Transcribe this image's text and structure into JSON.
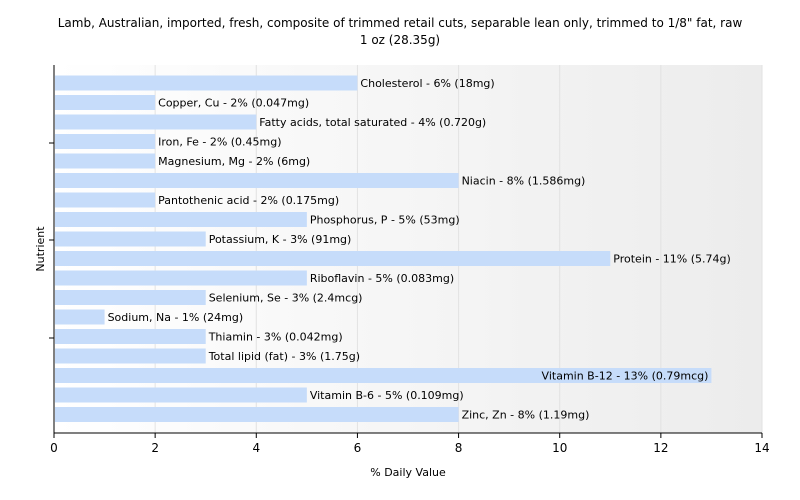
{
  "chart_data": {
    "type": "bar",
    "orientation": "horizontal",
    "title": "Lamb, Australian, imported, fresh, composite of trimmed retail cuts, separable lean only, trimmed to 1/8\" fat, raw",
    "subtitle": "1 oz (28.35g)",
    "xlabel": "% Daily Value",
    "ylabel": "Nutrient",
    "xlim": [
      0,
      14
    ],
    "xticks": [
      0,
      2,
      4,
      6,
      8,
      10,
      12,
      14
    ],
    "grid": true,
    "bar_color": "#c6dcfa",
    "categories": [
      "Cholesterol",
      "Copper, Cu",
      "Fatty acids, total saturated",
      "Iron, Fe",
      "Magnesium, Mg",
      "Niacin",
      "Pantothenic acid",
      "Phosphorus, P",
      "Potassium, K",
      "Protein",
      "Riboflavin",
      "Selenium, Se",
      "Sodium, Na",
      "Thiamin",
      "Total lipid (fat)",
      "Vitamin B-12",
      "Vitamin B-6",
      "Zinc, Zn"
    ],
    "values": [
      6,
      2,
      4,
      2,
      2,
      8,
      2,
      5,
      3,
      11,
      5,
      3,
      1,
      3,
      3,
      13,
      5,
      8
    ],
    "labels": [
      "Cholesterol - 6% (18mg)",
      "Copper, Cu - 2% (0.047mg)",
      "Fatty acids, total saturated - 4% (0.720g)",
      "Iron, Fe - 2% (0.45mg)",
      "Magnesium, Mg - 2% (6mg)",
      "Niacin - 8% (1.586mg)",
      "Pantothenic acid - 2% (0.175mg)",
      "Phosphorus, P - 5% (53mg)",
      "Potassium, K - 3% (91mg)",
      "Protein - 11% (5.74g)",
      "Riboflavin - 5% (0.083mg)",
      "Selenium, Se - 3% (2.4mcg)",
      "Sodium, Na - 1% (24mg)",
      "Thiamin - 3% (0.042mg)",
      "Total lipid (fat) - 3% (1.75g)",
      "Vitamin B-12 - 13% (0.79mcg)",
      "Vitamin B-6 - 5% (0.109mg)",
      "Zinc, Zn - 8% (1.19mg)"
    ]
  }
}
